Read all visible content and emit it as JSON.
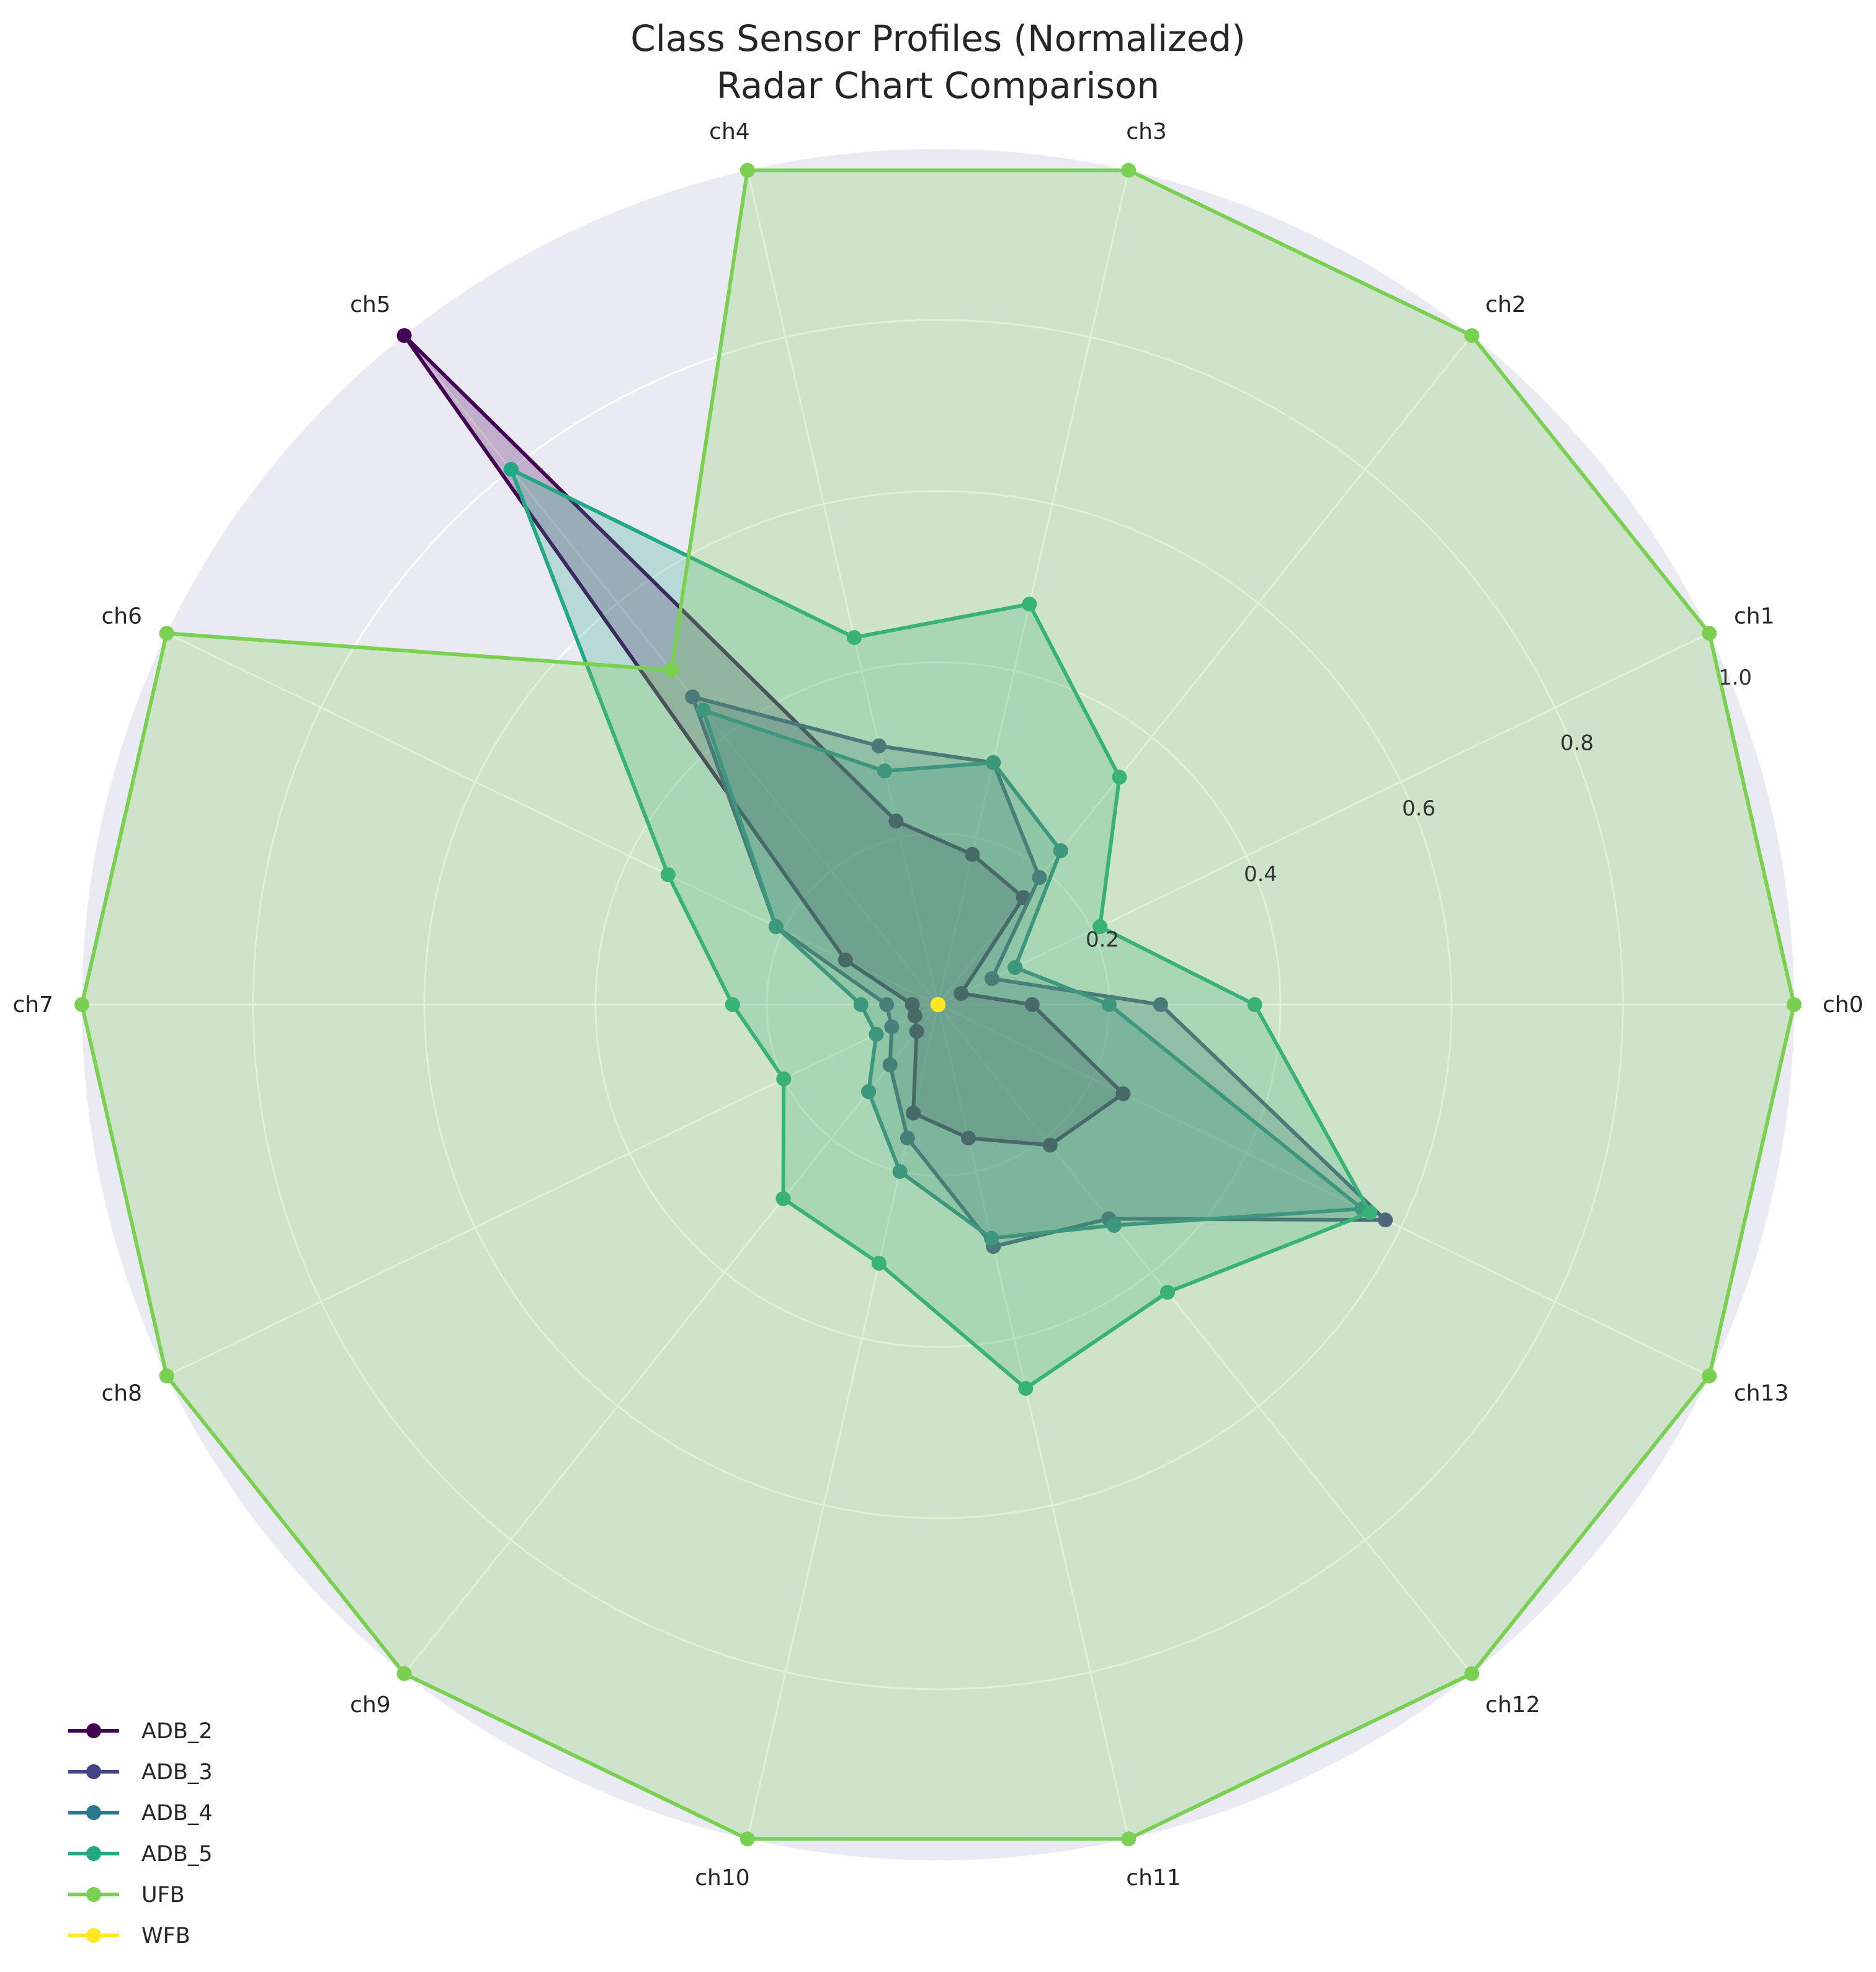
{
  "chart_data": {
    "type": "radar",
    "title": "Class Sensor Profiles (Normalized)",
    "subtitle": "Radar Chart Comparison",
    "axes": [
      "ch0",
      "ch1",
      "ch2",
      "ch3",
      "ch4",
      "ch5",
      "ch6",
      "ch7",
      "ch8",
      "ch9",
      "ch10",
      "ch11",
      "ch12",
      "ch13"
    ],
    "r_ticks": [
      "0.2",
      "0.4",
      "0.6",
      "0.8",
      "1.0"
    ],
    "r_tick_values": [
      0.2,
      0.4,
      0.6,
      0.8,
      1.0
    ],
    "rlim": [
      0,
      1
    ],
    "grid": true,
    "legend_position": "lower-left",
    "series": [
      {
        "name": "ADB_2",
        "color": "#440154",
        "values": [
          0.11,
          0.03,
          0.16,
          0.18,
          0.22,
          1.0,
          0.12,
          0.03,
          0.03,
          0.04,
          0.13,
          0.16,
          0.21,
          0.24
        ]
      },
      {
        "name": "ADB_3",
        "color": "#414487",
        "values": [
          0.26,
          0.07,
          0.19,
          0.29,
          0.31,
          0.46,
          0.21,
          0.06,
          0.06,
          0.09,
          0.16,
          0.29,
          0.32,
          0.58
        ]
      },
      {
        "name": "ADB_4",
        "color": "#2a788e",
        "values": [
          0.2,
          0.1,
          0.23,
          0.29,
          0.28,
          0.44,
          0.21,
          0.09,
          0.08,
          0.13,
          0.2,
          0.28,
          0.33,
          0.55
        ]
      },
      {
        "name": "ADB_5",
        "color": "#22a884",
        "values": [
          0.37,
          0.21,
          0.34,
          0.48,
          0.44,
          0.8,
          0.35,
          0.24,
          0.2,
          0.29,
          0.31,
          0.46,
          0.43,
          0.56
        ]
      },
      {
        "name": "UFB",
        "color": "#7ad151",
        "values": [
          1.0,
          1.0,
          1.0,
          1.0,
          1.0,
          0.5,
          1.0,
          1.0,
          1.0,
          1.0,
          1.0,
          1.0,
          1.0,
          1.0
        ]
      },
      {
        "name": "WFB",
        "color": "#fde725",
        "values": [
          0,
          0,
          0,
          0,
          0,
          0,
          0,
          0,
          0,
          0,
          0,
          0,
          0,
          0
        ]
      }
    ]
  }
}
